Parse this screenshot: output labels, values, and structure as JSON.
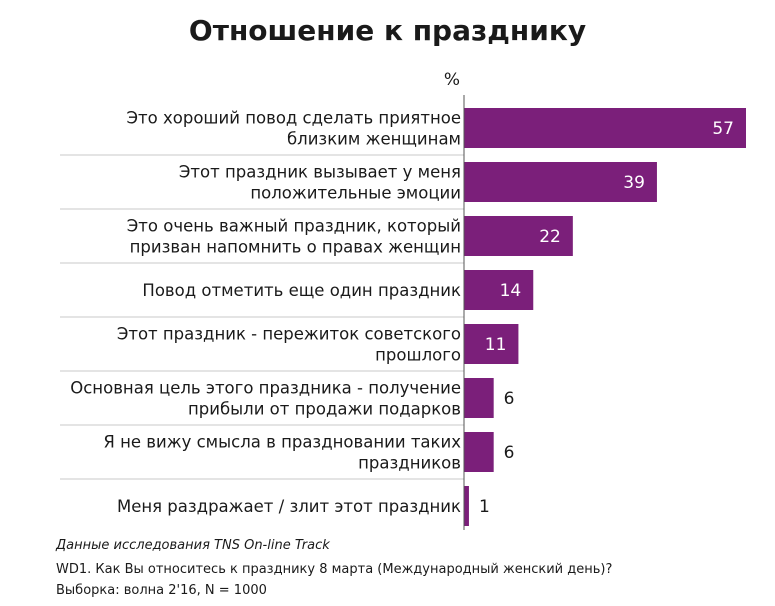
{
  "chart_data": {
    "type": "bar",
    "orientation": "horizontal",
    "title": "Отношение к празднику",
    "unit": "%",
    "categories": [
      [
        "Это хороший повод сделать приятное",
        "близким женщинам"
      ],
      [
        "Этот праздник вызывает у меня",
        "положительные эмоции"
      ],
      [
        "Это очень важный праздник, который",
        "призван напомнить о правах женщин"
      ],
      [
        "Повод отметить еще один праздник"
      ],
      [
        "Этот праздник - пережиток советского",
        "прошлого"
      ],
      [
        "Основная цель этого праздника - получение",
        "прибыли от продажи подарков"
      ],
      [
        "Я не вижу смысла в праздновании таких",
        "праздников"
      ],
      [
        "Меня раздражает / злит этот праздник"
      ]
    ],
    "values": [
      57,
      39,
      22,
      14,
      11,
      6,
      6,
      1
    ],
    "xlim": [
      0,
      57
    ],
    "bar_color": "#7b1f7a",
    "legend": "none"
  },
  "notes": [
    "Данные исследования TNS On-line Track",
    "WD1. Как Вы относитесь к празднику 8 марта (Международный женский день)?",
    "Выборка: волна 2'16, N = 1000"
  ]
}
